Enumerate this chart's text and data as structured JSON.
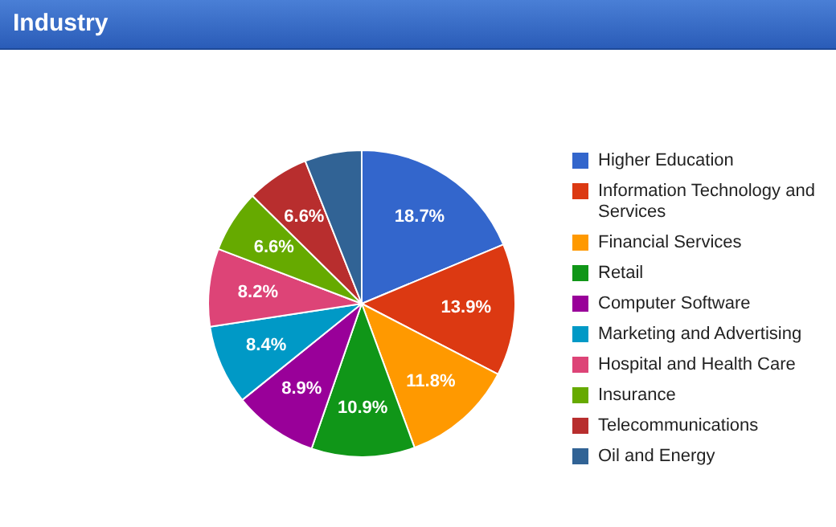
{
  "chart_data": {
    "type": "pie",
    "title": "Industry",
    "categories": [
      "Higher Education",
      "Information Technology and Services",
      "Financial Services",
      "Retail",
      "Computer Software",
      "Marketing and Advertising",
      "Hospital and Health Care",
      "Insurance",
      "Telecommunications",
      "Oil and Energy"
    ],
    "values": [
      18.7,
      13.9,
      11.8,
      10.9,
      8.9,
      8.4,
      8.2,
      6.6,
      6.6,
      6.0
    ],
    "value_labels": [
      "18.7%",
      "13.9%",
      "11.8%",
      "10.9%",
      "8.9%",
      "8.4%",
      "8.2%",
      "6.6%",
      "6.6%",
      null
    ],
    "colors": [
      "#3366cc",
      "#dc3912",
      "#ff9900",
      "#109618",
      "#990099",
      "#0099c6",
      "#dd4477",
      "#66aa00",
      "#b82e2e",
      "#316395"
    ],
    "legend": "right"
  }
}
